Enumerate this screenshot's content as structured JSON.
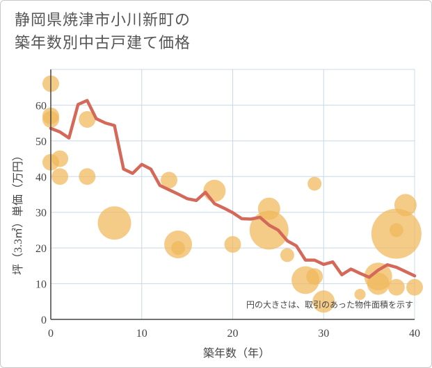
{
  "chart_data": {
    "type": "scatter",
    "title_lines": [
      "静岡県焼津市小川新町の",
      "築年数別中古戸建て価格"
    ],
    "xlabel": "築年数（年）",
    "ylabel": "坪（3.3㎡）単価（万円）",
    "xlim": [
      0,
      40
    ],
    "ylim": [
      0,
      70
    ],
    "x_ticks": [
      0,
      10,
      20,
      30,
      40
    ],
    "y_ticks": [
      0,
      10,
      20,
      30,
      40,
      50,
      60
    ],
    "grid": true,
    "note": "円の大きさは、取引のあった物件面積を示す",
    "colors": {
      "bubble": "#f0b95a",
      "line": "#d4695a",
      "grid": "#c8d8e8",
      "axis": "#444444"
    },
    "bubbles": [
      {
        "x": 0,
        "y": 66,
        "size": 2
      },
      {
        "x": 0,
        "y": 57,
        "size": 2
      },
      {
        "x": 0,
        "y": 56,
        "size": 2
      },
      {
        "x": 0,
        "y": 44,
        "size": 2
      },
      {
        "x": 1,
        "y": 45,
        "size": 2
      },
      {
        "x": 1,
        "y": 40,
        "size": 2
      },
      {
        "x": 4,
        "y": 56,
        "size": 2
      },
      {
        "x": 4,
        "y": 40,
        "size": 2
      },
      {
        "x": 7,
        "y": 27,
        "size": 5
      },
      {
        "x": 13,
        "y": 39,
        "size": 2
      },
      {
        "x": 14,
        "y": 21,
        "size": 4
      },
      {
        "x": 14,
        "y": 20,
        "size": 1.5
      },
      {
        "x": 18,
        "y": 36,
        "size": 3
      },
      {
        "x": 20,
        "y": 21,
        "size": 2
      },
      {
        "x": 24,
        "y": 31,
        "size": 3
      },
      {
        "x": 24,
        "y": 25,
        "size": 6
      },
      {
        "x": 26,
        "y": 18,
        "size": 1.5
      },
      {
        "x": 28,
        "y": 11,
        "size": 4
      },
      {
        "x": 29,
        "y": 12,
        "size": 2
      },
      {
        "x": 29,
        "y": 38,
        "size": 1.5
      },
      {
        "x": 30,
        "y": 5,
        "size": 3
      },
      {
        "x": 34,
        "y": 7,
        "size": 1
      },
      {
        "x": 36,
        "y": 12,
        "size": 4
      },
      {
        "x": 36,
        "y": 10,
        "size": 3
      },
      {
        "x": 38,
        "y": 24,
        "size": 8
      },
      {
        "x": 38,
        "y": 25,
        "size": 1.5
      },
      {
        "x": 38,
        "y": 9,
        "size": 2
      },
      {
        "x": 39,
        "y": 32,
        "size": 3
      },
      {
        "x": 40,
        "y": 9,
        "size": 2
      }
    ],
    "trend": {
      "x": [
        0,
        1,
        2,
        3,
        4,
        5,
        6,
        7,
        8,
        9,
        10,
        11,
        12,
        13,
        14,
        15,
        16,
        17,
        18,
        19,
        20,
        21,
        22,
        23,
        24,
        25,
        26,
        27,
        28,
        29,
        30,
        31,
        32,
        33,
        34,
        35,
        36,
        37,
        38,
        39,
        40
      ],
      "y": [
        53.5,
        52.5,
        50.8,
        60.2,
        61.3,
        56.2,
        55,
        54.3,
        42.1,
        40.9,
        43.4,
        42.1,
        37.5,
        36.3,
        35.1,
        33.8,
        33.3,
        35.6,
        32.4,
        31.2,
        29.9,
        28.2,
        28.1,
        28.6,
        26.4,
        25,
        22,
        20.6,
        16.6,
        16.6,
        15.4,
        16.1,
        12.5,
        14.1,
        12.9,
        11.8,
        13.8,
        15.3,
        14.6,
        13.4,
        12.2
      ]
    }
  }
}
